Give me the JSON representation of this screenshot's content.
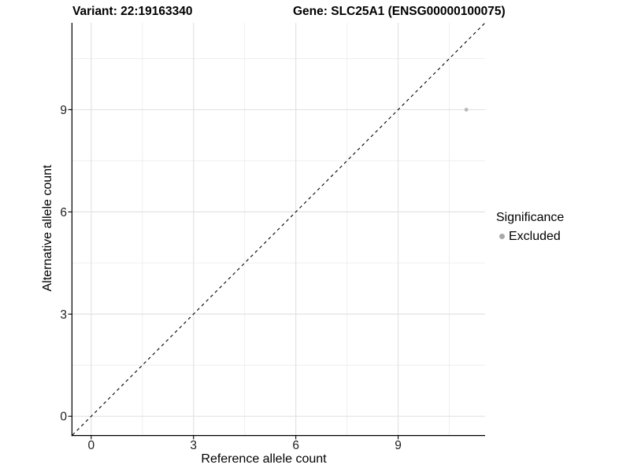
{
  "header": {
    "title_variant": "Variant: 22:19163340",
    "title_gene": "Gene: SLC25A1 (ENSG00000100075)"
  },
  "chart_data": {
    "type": "scatter",
    "xlabel": "Reference allele count",
    "ylabel": "Alternative allele count",
    "xlim": [
      -0.55,
      11.55
    ],
    "ylim": [
      -0.55,
      11.55
    ],
    "x_ticks": [
      0,
      3,
      6,
      9
    ],
    "y_ticks": [
      0,
      3,
      6,
      9
    ],
    "x_minor_ticks": [
      1.5,
      4.5,
      7.5,
      10.5
    ],
    "y_minor_ticks": [
      1.5,
      4.5,
      7.5,
      10.5
    ],
    "grid": true,
    "reference_line": {
      "type": "identity",
      "style": "dashed",
      "color": "#000000"
    },
    "series": [
      {
        "name": "Excluded",
        "color": "#b9b9b9",
        "point_radius": 2.4,
        "points": [
          {
            "x": 11,
            "y": 9
          }
        ]
      }
    ],
    "legend": {
      "position": "right",
      "title": "Significance",
      "entries": [
        {
          "label": "Excluded",
          "color": "#a8a8a8"
        }
      ]
    }
  },
  "colors": {
    "background": "#ffffff",
    "grid_major": "#e3e3e3",
    "grid_minor": "#efefef",
    "axis_line": "#000000",
    "tick_text": "#1f1f1f"
  }
}
